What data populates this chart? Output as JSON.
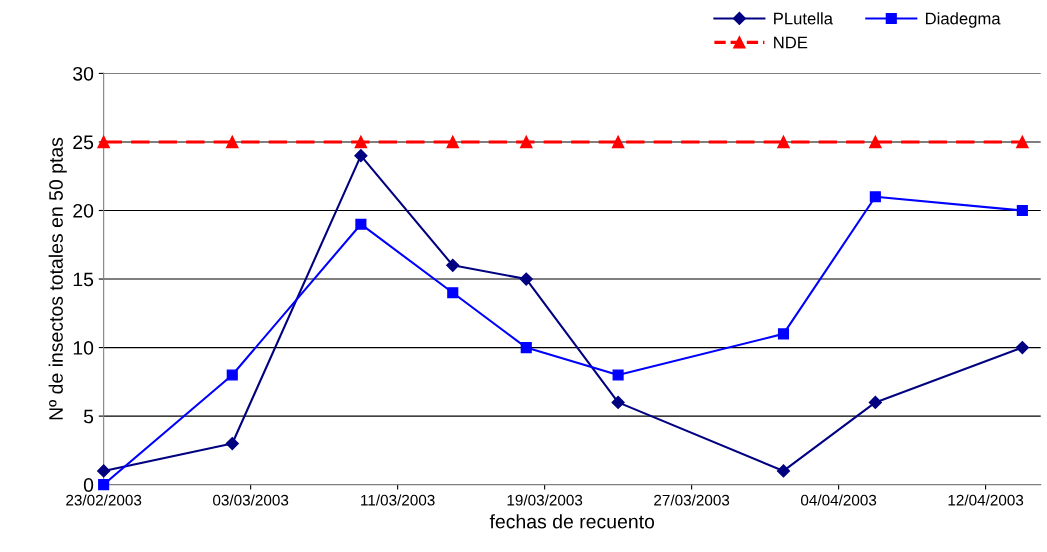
{
  "chart_data": {
    "type": "line",
    "xlabel": "fechas de recuento",
    "ylabel": "Nº de insectos totales en 50 ptas",
    "x": [
      "2003-02-23",
      "2003-03-02",
      "2003-03-09",
      "2003-03-14",
      "2003-03-18",
      "2003-03-23",
      "2003-04-01",
      "2003-04-06",
      "2003-04-14"
    ],
    "series": [
      {
        "name": "PLutella",
        "color": "#000080",
        "marker": "diamond",
        "line_style": "solid",
        "values": [
          1,
          3,
          24,
          16,
          15,
          6,
          1,
          6,
          10
        ]
      },
      {
        "name": "Diadegma",
        "color": "#0000ff",
        "marker": "square",
        "line_style": "solid",
        "values": [
          0,
          8,
          19,
          14,
          10,
          8,
          11,
          21,
          20
        ]
      },
      {
        "name": "NDE",
        "color": "#ff0000",
        "marker": "triangle",
        "line_style": "dashed",
        "values": [
          25,
          25,
          25,
          25,
          25,
          25,
          25,
          25,
          25
        ]
      }
    ],
    "xlim": [
      "2003-02-23",
      "2003-04-15"
    ],
    "xticks": [
      {
        "value": "2003-02-23",
        "label": "23/02/2003"
      },
      {
        "value": "2003-03-03",
        "label": "03/03/2003"
      },
      {
        "value": "2003-03-11",
        "label": "11/03/2003"
      },
      {
        "value": "2003-03-19",
        "label": "19/03/2003"
      },
      {
        "value": "2003-03-27",
        "label": "27/03/2003"
      },
      {
        "value": "2003-04-04",
        "label": "04/04/2003"
      },
      {
        "value": "2003-04-12",
        "label": "12/04/2003"
      }
    ],
    "ylim": [
      0,
      30
    ],
    "yticks": [
      0,
      5,
      10,
      15,
      20,
      25,
      30
    ],
    "grid": "y",
    "legend": "top right"
  }
}
